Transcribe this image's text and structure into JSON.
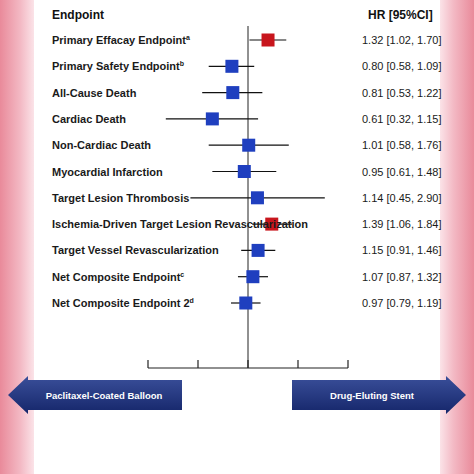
{
  "chart_data": {
    "type": "forest",
    "label_header": "Endpoint",
    "value_header": "HR [95%CI]",
    "categories": [
      "Primary Effacay Endpoint",
      "Primary Safety Endpoint",
      "All-Cause Death",
      "Cardiac Death",
      "Non-Cardiac Death",
      "Myocardial Infarction",
      "Target Lesion Thrombosis",
      "Ischemia-Driven Target Lesion Revascularization",
      "Target Vessel Revascularization",
      "Net Composite Endpoint",
      "Net Composite Endpoint 2"
    ],
    "footnotes": [
      "a",
      "b",
      null,
      null,
      null,
      null,
      null,
      null,
      null,
      "c",
      "d"
    ],
    "values": [
      1.32,
      0.8,
      0.81,
      0.61,
      1.01,
      0.95,
      1.14,
      1.39,
      1.15,
      1.07,
      0.97
    ],
    "ci_low": [
      1.02,
      0.58,
      0.53,
      0.32,
      0.58,
      0.61,
      0.45,
      1.06,
      0.91,
      0.87,
      0.79
    ],
    "ci_high": [
      1.7,
      1.09,
      1.22,
      1.15,
      1.76,
      1.48,
      2.9,
      1.84,
      1.46,
      1.32,
      1.19
    ],
    "value_labels": [
      "1.32 [1.02, 1.70]",
      "0.80 [0.58, 1.09]",
      "0.81 [0.53, 1.22]",
      "0.61 [0.32, 1.15]",
      "1.01 [0.58, 1.76]",
      "0.95 [0.61, 1.48]",
      "1.14 [0.45, 2.90]",
      "1.39 [1.06, 1.84]",
      "1.15 [0.91, 1.46]",
      "1.07 [0.87, 1.32]",
      "0.97 [0.79, 1.19]"
    ],
    "colors": [
      "#c8161d",
      "#1f3fbf",
      "#1f3fbf",
      "#1f3fbf",
      "#1f3fbf",
      "#1f3fbf",
      "#1f3fbf",
      "#c8161d",
      "#1f3fbf",
      "#1f3fbf",
      "#1f3fbf"
    ],
    "reference_value": 1,
    "xlim": [
      0.25,
      4
    ],
    "xticks": [
      0.25,
      0.5,
      1,
      2,
      4
    ],
    "log": "x",
    "tick_labels": false,
    "arrow_labels": [
      "Paclitaxel-Coated Balloon",
      "Drug-Eluting Stent"
    ]
  }
}
